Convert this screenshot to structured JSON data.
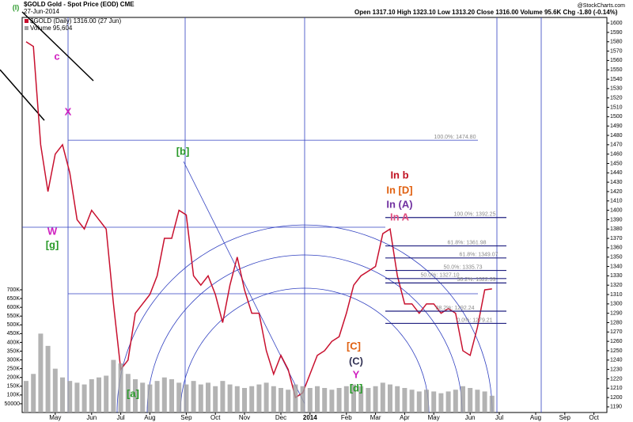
{
  "header": {
    "title": "$GOLD Gold - Spot Price (EOD) CME",
    "date": "27-Jun-2014",
    "source": "@StockCharts.com",
    "stats": "Open 1317.10  High 1323.10  Low 1313.20  Close 1316.00  Volume 95.6K  Chg -1.80 (-0.14%)",
    "legend_price": "$GOLD (Daily) 1316.00 (27 Jun)",
    "legend_volume": "Volume 95,604"
  },
  "chart_data": {
    "type": "line",
    "categories": [
      null,
      null,
      null,
      null,
      "May",
      null,
      null,
      null,
      null,
      "Jun",
      null,
      null,
      null,
      "Jul",
      null,
      null,
      null,
      "Aug",
      null,
      null,
      null,
      null,
      "Sep",
      null,
      null,
      null,
      "Oct",
      null,
      null,
      null,
      "Nov",
      null,
      null,
      null,
      null,
      "Dec",
      null,
      null,
      null,
      "2014",
      null,
      null,
      null,
      null,
      "Feb",
      null,
      null,
      null,
      "Mar",
      null,
      null,
      null,
      "Apr",
      null,
      null,
      null,
      "May",
      null,
      null,
      null,
      null,
      "Jun",
      null,
      null,
      null,
      "Jul",
      null,
      null,
      null,
      null,
      "Aug",
      null,
      null,
      null,
      "Sep",
      null,
      null,
      null,
      "Oct"
    ],
    "series": [
      {
        "name": "$GOLD",
        "color": "#c8102e",
        "values": [
          1580,
          1575,
          1470,
          1420,
          1460,
          1470,
          1440,
          1390,
          1380,
          1400,
          1390,
          1380,
          1300,
          1230,
          1240,
          1290,
          1300,
          1310,
          1330,
          1370,
          1370,
          1400,
          1395,
          1330,
          1320,
          1330,
          1310,
          1280,
          1320,
          1350,
          1315,
          1290,
          1290,
          1250,
          1225,
          1245,
          1230,
          1200,
          1205,
          1225,
          1245,
          1250,
          1260,
          1265,
          1290,
          1320,
          1330,
          1335,
          1340,
          1375,
          1380,
          1330,
          1300,
          1300,
          1290,
          1300,
          1300,
          1290,
          1295,
          1290,
          1250,
          1245,
          1275,
          1315,
          1316,
          null,
          null,
          null,
          null,
          null,
          null,
          null,
          null,
          null,
          null,
          null,
          null,
          null,
          null
        ]
      },
      {
        "name": "Volume",
        "color": "#a0a0a0",
        "axis": "y2",
        "values": [
          180000,
          220000,
          450000,
          380000,
          250000,
          200000,
          180000,
          170000,
          160000,
          190000,
          200000,
          210000,
          300000,
          280000,
          220000,
          190000,
          170000,
          160000,
          180000,
          200000,
          190000,
          170000,
          160000,
          180000,
          160000,
          170000,
          150000,
          180000,
          160000,
          150000,
          140000,
          150000,
          160000,
          170000,
          150000,
          140000,
          130000,
          160000,
          150000,
          140000,
          150000,
          140000,
          130000,
          140000,
          150000,
          160000,
          150000,
          140000,
          150000,
          170000,
          160000,
          150000,
          140000,
          130000,
          120000,
          130000,
          120000,
          110000,
          120000,
          130000,
          150000,
          140000,
          130000,
          120000,
          95604,
          null,
          null,
          null,
          null,
          null,
          null,
          null,
          null,
          null,
          null,
          null,
          null,
          null,
          null
        ]
      }
    ],
    "ylim": [
      1184,
      1606
    ],
    "yticks": [
      1190,
      1200,
      1210,
      1220,
      1230,
      1240,
      1250,
      1260,
      1270,
      1280,
      1290,
      1300,
      1310,
      1320,
      1330,
      1340,
      1350,
      1360,
      1370,
      1380,
      1390,
      1400,
      1410,
      1420,
      1430,
      1440,
      1450,
      1460,
      1470,
      1480,
      1490,
      1500,
      1510,
      1520,
      1530,
      1540,
      1550,
      1560,
      1570,
      1580,
      1590,
      1600
    ],
    "y2lim": [
      0,
      700000
    ],
    "y2ticks": [
      {
        "value": 50000,
        "label": "50000"
      },
      {
        "value": 100000,
        "label": "100K"
      },
      {
        "value": 150000,
        "label": "150K"
      },
      {
        "value": 200000,
        "label": "200K"
      },
      {
        "value": 250000,
        "label": "250K"
      },
      {
        "value": 300000,
        "label": "300K"
      },
      {
        "value": 350000,
        "label": "350K"
      },
      {
        "value": 400000,
        "label": "400K"
      },
      {
        "value": 450000,
        "label": "450K"
      },
      {
        "value": 500000,
        "label": "500K"
      },
      {
        "value": 550000,
        "label": "550K"
      },
      {
        "value": 600000,
        "label": "600K"
      },
      {
        "value": 650000,
        "label": "650K"
      },
      {
        "value": 700000,
        "label": "700K"
      }
    ],
    "annotations": [
      {
        "text": "(I)",
        "color": "#2a9a2a"
      },
      {
        "text": "c",
        "color": "#d020c0"
      },
      {
        "text": "X",
        "color": "#d020c0"
      },
      {
        "text": "W",
        "color": "#d020c0"
      },
      {
        "text": "[g]",
        "color": "#2a9a2a"
      },
      {
        "text": "[b]",
        "color": "#2a9a2a"
      },
      {
        "text": "In b",
        "color": "#c01020"
      },
      {
        "text": "In [D]",
        "color": "#e06010"
      },
      {
        "text": "In (A)",
        "color": "#7030a0"
      },
      {
        "text": "In A",
        "color": "#e05080"
      },
      {
        "text": "[C]",
        "color": "#e06010"
      },
      {
        "text": "(C)",
        "color": "#333355"
      },
      {
        "text": "Y",
        "color": "#d020c0"
      },
      {
        "text": "[d]",
        "color": "#2a9a2a"
      },
      {
        "text": "[a]",
        "color": "#2a9a2a"
      }
    ],
    "levels": [
      {
        "label": "100.0%: 1474.80",
        "value": 1474.8
      },
      {
        "label": "100.0%: 1392.25",
        "value": 1392.25
      },
      {
        "label": "61.8%: 1361.98",
        "value": 1361.98
      },
      {
        "label": "61.8%: 1349.07",
        "value": 1349.07
      },
      {
        "label": "50.0%: 1335.73",
        "value": 1335.73
      },
      {
        "label": "50.0%: 1327.10",
        "value": 1327.1
      },
      {
        "label": "38.2%: 1322.39",
        "value": 1322.39
      },
      {
        "label": "38.2%: 1292.24",
        "value": 1292.24
      },
      {
        "label": "0.0%: 1279.21",
        "value": 1279.21
      }
    ]
  }
}
